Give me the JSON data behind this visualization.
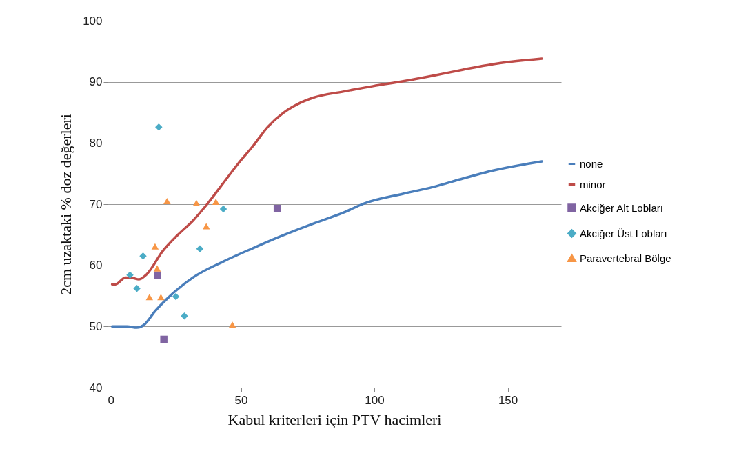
{
  "chart_data": {
    "type": "line",
    "xlabel": "Kabul kriterleri için PTV hacimleri",
    "ylabel": "2cm uzaktaki % doz değerleri",
    "xlim": [
      0,
      170
    ],
    "xticks": [
      0,
      50,
      100,
      150
    ],
    "ylim": [
      40,
      100
    ],
    "yticks": [
      40,
      50,
      60,
      70,
      80,
      90,
      100
    ],
    "grid": "y",
    "legend": "right",
    "series": [
      {
        "name": "none",
        "color": "#4a7ebb",
        "marker": "none",
        "x": [
          1.7,
          7.3,
          11.0,
          13.5,
          18.0,
          24.2,
          32.0,
          43.3,
          54.5,
          65.8,
          77.0,
          88.3,
          96.1,
          110.8,
          122.0,
          133.3,
          144.5,
          162.8
        ],
        "values": [
          50.0,
          50.0,
          49.8,
          50.2,
          52.6,
          55.3,
          58.0,
          60.6,
          62.8,
          64.9,
          66.8,
          68.6,
          70.1,
          71.7,
          72.8,
          74.2,
          75.5,
          77.0
        ]
      },
      {
        "name": "minor",
        "color": "#be4b48",
        "marker": "none",
        "x": [
          1.7,
          3.0,
          6.7,
          9.6,
          11.8,
          14.6,
          20.8,
          26.4,
          32.0,
          37.7,
          43.3,
          48.9,
          54.5,
          60.2,
          65.8,
          71.4,
          77.0,
          88.3,
          99.5,
          110.8,
          122.0,
          133.3,
          144.5,
          162.8
        ],
        "values": [
          56.9,
          56.9,
          58.0,
          57.9,
          57.7,
          58.5,
          62.4,
          65.0,
          67.3,
          70.2,
          73.4,
          76.6,
          79.5,
          82.7,
          84.9,
          86.4,
          87.4,
          88.4,
          89.3,
          90.1,
          91.0,
          92.0,
          92.9,
          93.8
        ]
      },
      {
        "name": "Akciğer Alt Lobları",
        "color": "#8064a2",
        "type": "scatter",
        "marker": "square",
        "x": [
          18.7,
          21.1,
          63.6
        ],
        "values": [
          58.4,
          47.9,
          69.3
        ]
      },
      {
        "name": "Akciğer Üst Lobları",
        "color": "#4bacc6",
        "type": "scatter",
        "marker": "diamond",
        "x": [
          19.2,
          8.4,
          13.3,
          11.0,
          25.6,
          28.8,
          34.6,
          43.4
        ],
        "values": [
          82.6,
          58.4,
          61.5,
          56.2,
          54.9,
          51.7,
          62.7,
          69.2
        ]
      },
      {
        "name": "Paravertebral Bölge",
        "color": "#f79646",
        "type": "scatter",
        "marker": "triangle",
        "x": [
          22.3,
          33.3,
          40.6,
          37.0,
          17.8,
          18.6,
          15.7,
          20.0,
          46.8
        ],
        "values": [
          70.5,
          70.2,
          70.4,
          66.4,
          63.1,
          59.5,
          54.8,
          54.8,
          50.3
        ]
      }
    ]
  }
}
